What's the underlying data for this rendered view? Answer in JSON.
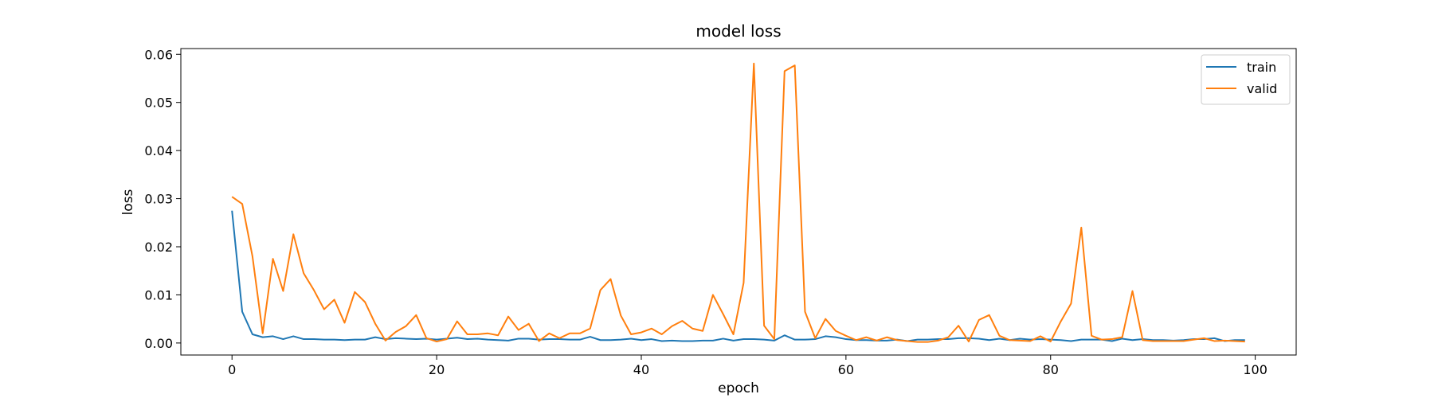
{
  "chart_data": {
    "type": "line",
    "title": "model loss",
    "xlabel": "epoch",
    "ylabel": "loss",
    "xlim": [
      -5,
      104
    ],
    "ylim": [
      -0.0025,
      0.0612
    ],
    "xticks": [
      0,
      20,
      40,
      60,
      80,
      100
    ],
    "yticks": [
      0.0,
      0.01,
      0.02,
      0.03,
      0.04,
      0.05,
      0.06
    ],
    "xtick_labels": [
      "0",
      "20",
      "40",
      "60",
      "80",
      "100"
    ],
    "ytick_labels": [
      "0.00",
      "0.01",
      "0.02",
      "0.03",
      "0.04",
      "0.05",
      "0.06"
    ],
    "grid": false,
    "legend_position": "top-right",
    "x": [
      0,
      1,
      2,
      3,
      4,
      5,
      6,
      7,
      8,
      9,
      10,
      11,
      12,
      13,
      14,
      15,
      16,
      17,
      18,
      19,
      20,
      21,
      22,
      23,
      24,
      25,
      26,
      27,
      28,
      29,
      30,
      31,
      32,
      33,
      34,
      35,
      36,
      37,
      38,
      39,
      40,
      41,
      42,
      43,
      44,
      45,
      46,
      47,
      48,
      49,
      50,
      51,
      52,
      53,
      54,
      55,
      56,
      57,
      58,
      59,
      60,
      61,
      62,
      63,
      64,
      65,
      66,
      67,
      68,
      69,
      70,
      71,
      72,
      73,
      74,
      75,
      76,
      77,
      78,
      79,
      80,
      81,
      82,
      83,
      84,
      85,
      86,
      87,
      88,
      89,
      90,
      91,
      92,
      93,
      94,
      95,
      96,
      97,
      98,
      99
    ],
    "series": [
      {
        "name": "train",
        "color": "#1f77b4",
        "values": [
          0.0275,
          0.0065,
          0.0018,
          0.0012,
          0.0014,
          0.0008,
          0.0014,
          0.0008,
          0.0008,
          0.0007,
          0.0007,
          0.0006,
          0.0007,
          0.0007,
          0.0012,
          0.0008,
          0.001,
          0.0009,
          0.0008,
          0.0009,
          0.0007,
          0.0009,
          0.0011,
          0.0008,
          0.0009,
          0.0007,
          0.0006,
          0.0005,
          0.0009,
          0.0009,
          0.0007,
          0.0008,
          0.0008,
          0.0007,
          0.0007,
          0.0013,
          0.0006,
          0.0006,
          0.0007,
          0.0009,
          0.0006,
          0.0008,
          0.0004,
          0.0005,
          0.0004,
          0.0004,
          0.0005,
          0.0005,
          0.0009,
          0.0005,
          0.0008,
          0.0008,
          0.0007,
          0.0005,
          0.0016,
          0.0007,
          0.0007,
          0.0008,
          0.0014,
          0.0012,
          0.0008,
          0.0006,
          0.0006,
          0.0005,
          0.0005,
          0.0007,
          0.0004,
          0.0007,
          0.0007,
          0.0008,
          0.0008,
          0.001,
          0.001,
          0.0009,
          0.0006,
          0.0009,
          0.0006,
          0.0009,
          0.0007,
          0.0008,
          0.0007,
          0.0006,
          0.0004,
          0.0007,
          0.0007,
          0.0007,
          0.0004,
          0.0009,
          0.0006,
          0.0008,
          0.0006,
          0.0006,
          0.0005,
          0.0006,
          0.0008,
          0.0008,
          0.001,
          0.0004,
          0.0006,
          0.0006
        ]
      },
      {
        "name": "valid",
        "color": "#ff7f0e",
        "values": [
          0.0304,
          0.0289,
          0.018,
          0.002,
          0.0175,
          0.0108,
          0.0226,
          0.0145,
          0.011,
          0.007,
          0.009,
          0.0042,
          0.0106,
          0.0085,
          0.004,
          0.0005,
          0.0023,
          0.0035,
          0.0058,
          0.001,
          0.0003,
          0.0008,
          0.0045,
          0.0018,
          0.0018,
          0.002,
          0.0016,
          0.0055,
          0.0027,
          0.004,
          0.0004,
          0.002,
          0.001,
          0.002,
          0.002,
          0.003,
          0.011,
          0.0133,
          0.0057,
          0.0018,
          0.0022,
          0.003,
          0.0018,
          0.0035,
          0.0046,
          0.003,
          0.0025,
          0.01,
          0.006,
          0.0018,
          0.0125,
          0.0581,
          0.0036,
          0.0008,
          0.0565,
          0.0577,
          0.0065,
          0.001,
          0.005,
          0.0025,
          0.0015,
          0.0006,
          0.0012,
          0.0005,
          0.0012,
          0.0006,
          0.0004,
          0.0002,
          0.0002,
          0.0005,
          0.0012,
          0.0036,
          0.0003,
          0.0048,
          0.0058,
          0.0015,
          0.0006,
          0.0005,
          0.0004,
          0.0014,
          0.0003,
          0.0045,
          0.0082,
          0.024,
          0.0015,
          0.0007,
          0.0008,
          0.0012,
          0.0108,
          0.0006,
          0.0004,
          0.0004,
          0.0004,
          0.0004,
          0.0007,
          0.001,
          0.0004,
          0.0005,
          0.0004,
          0.0003
        ]
      }
    ]
  }
}
